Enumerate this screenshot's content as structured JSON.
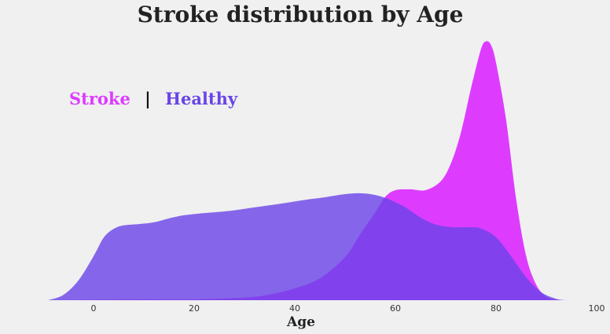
{
  "chart_data": {
    "type": "area",
    "title": "Stroke distribution by Age",
    "xlabel": "Age",
    "ylabel": "",
    "xlim": [
      -9,
      94
    ],
    "x_ticks": [
      0,
      20,
      40,
      60,
      80,
      100
    ],
    "grid": false,
    "y_axis_visible": false,
    "legend": {
      "placement": "top-left",
      "separator": "|",
      "items": [
        {
          "label": "Stroke",
          "color": "#dd3cff"
        },
        {
          "label": "Healthy",
          "color": "#6845e6"
        }
      ]
    },
    "series": [
      {
        "name": "Healthy",
        "color": "#6a44e8",
        "opacity": 0.8,
        "points": [
          [
            -9,
            0.0
          ],
          [
            -6,
            0.012
          ],
          [
            -3,
            0.045
          ],
          [
            0,
            0.1
          ],
          [
            2,
            0.142
          ],
          [
            4,
            0.162
          ],
          [
            6,
            0.17
          ],
          [
            9,
            0.173
          ],
          [
            12,
            0.177
          ],
          [
            15,
            0.186
          ],
          [
            18,
            0.193
          ],
          [
            22,
            0.198
          ],
          [
            27,
            0.203
          ],
          [
            32,
            0.211
          ],
          [
            37,
            0.219
          ],
          [
            42,
            0.228
          ],
          [
            46,
            0.234
          ],
          [
            50,
            0.241
          ],
          [
            53,
            0.243
          ],
          [
            56,
            0.239
          ],
          [
            59,
            0.228
          ],
          [
            62,
            0.211
          ],
          [
            65,
            0.188
          ],
          [
            68,
            0.172
          ],
          [
            71,
            0.166
          ],
          [
            74,
            0.166
          ],
          [
            77,
            0.163
          ],
          [
            80,
            0.143
          ],
          [
            83,
            0.1
          ],
          [
            86,
            0.052
          ],
          [
            89,
            0.018
          ],
          [
            92,
            0.003
          ],
          [
            94,
            0.0
          ]
        ]
      },
      {
        "name": "Stroke",
        "color": "#dd3cff",
        "opacity": 1.0,
        "points": [
          [
            -9,
            0.0
          ],
          [
            0,
            0.001
          ],
          [
            10,
            0.002
          ],
          [
            20,
            0.002
          ],
          [
            30,
            0.006
          ],
          [
            35,
            0.013
          ],
          [
            40,
            0.027
          ],
          [
            45,
            0.05
          ],
          [
            50,
            0.098
          ],
          [
            53,
            0.15
          ],
          [
            56,
            0.2
          ],
          [
            58,
            0.235
          ],
          [
            60,
            0.25
          ],
          [
            63,
            0.252
          ],
          [
            66,
            0.25
          ],
          [
            69,
            0.27
          ],
          [
            71,
            0.31
          ],
          [
            73,
            0.38
          ],
          [
            75,
            0.48
          ],
          [
            77,
            0.57
          ],
          [
            78,
            0.588
          ],
          [
            79,
            0.58
          ],
          [
            80,
            0.54
          ],
          [
            82,
            0.41
          ],
          [
            84,
            0.23
          ],
          [
            86,
            0.1
          ],
          [
            88,
            0.035
          ],
          [
            90,
            0.008
          ],
          [
            92,
            0.001
          ],
          [
            94,
            0.0
          ]
        ]
      }
    ]
  }
}
